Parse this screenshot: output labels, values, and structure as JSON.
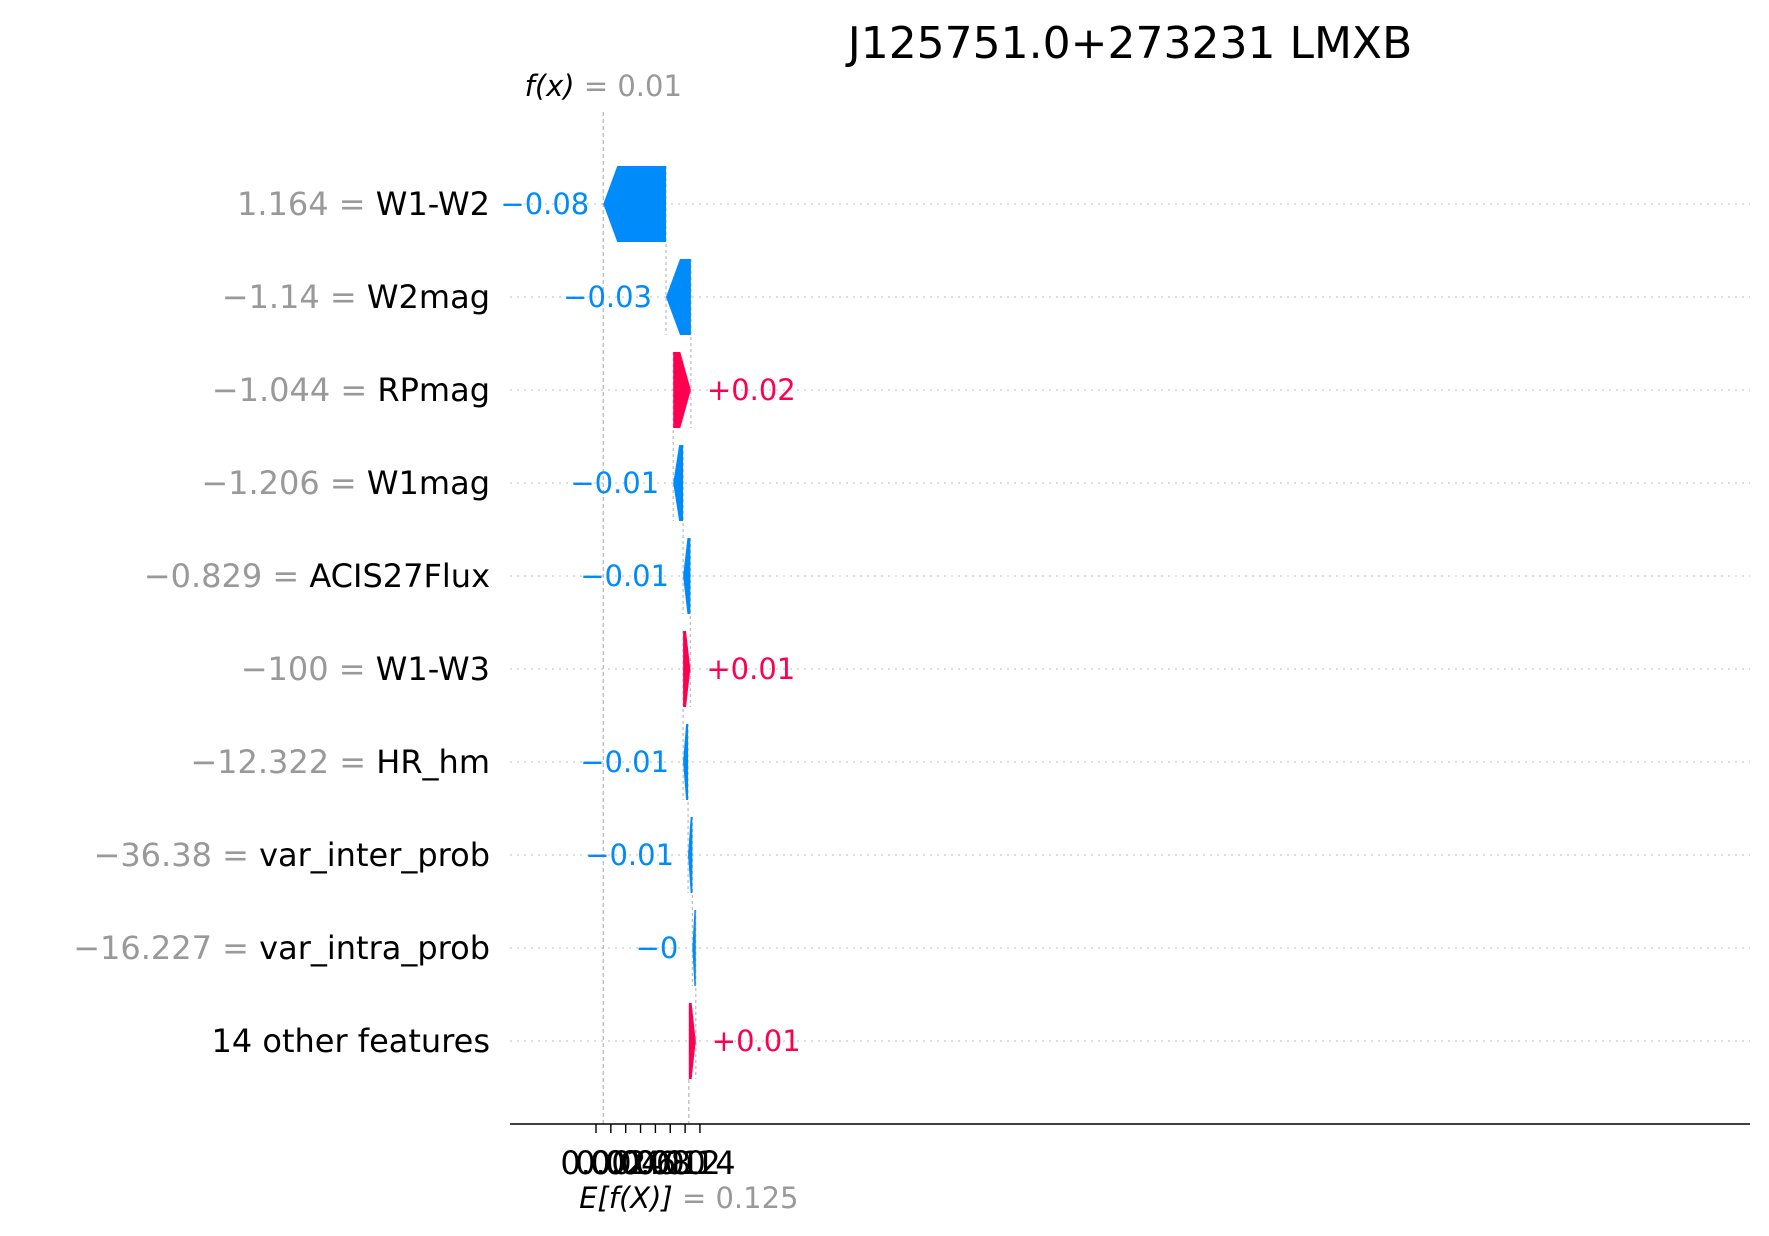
{
  "chart_data": {
    "type": "bar",
    "orientation": "horizontal",
    "subtype": "waterfall",
    "title": "J125751.0+273231 LMXB",
    "fx": {
      "label_prefix": "f(x)",
      "value": 0.0098,
      "value_text": " = 0.01"
    },
    "efx": {
      "label_prefix": "E[f(X)]",
      "value": 0.125,
      "value_text": " = 0.125"
    },
    "xlim": [
      -0.0115,
      0.1555
    ],
    "ticks": [
      0.0,
      0.02,
      0.04,
      0.06,
      0.08,
      0.1,
      0.12,
      0.14
    ],
    "tick_labels": [
      "0.00",
      "0.02",
      "0.04",
      "0.06",
      "0.08",
      "0.10",
      "0.12",
      "0.14"
    ],
    "grid": "dotted row guides",
    "colors": {
      "positive": "#ff0051",
      "negative": "#008bfb",
      "muted": "#999999"
    },
    "features": [
      {
        "value": "1.164",
        "name": "W1-W2",
        "start": 0.0943,
        "end": 0.0098,
        "label": "−0.08"
      },
      {
        "value": "−1.14",
        "name": "W2mag",
        "start": 0.1278,
        "end": 0.0943,
        "label": "−0.03"
      },
      {
        "value": "−1.044",
        "name": "RPmag",
        "start": 0.104,
        "end": 0.1278,
        "label": "+0.02"
      },
      {
        "value": "−1.206",
        "name": "W1mag",
        "start": 0.1173,
        "end": 0.104,
        "label": "−0.01"
      },
      {
        "value": "−0.829",
        "name": "ACIS27Flux",
        "start": 0.1271,
        "end": 0.1173,
        "label": "−0.01"
      },
      {
        "value": "−100",
        "name": "W1-W3",
        "start": 0.1173,
        "end": 0.1271,
        "label": "+0.01"
      },
      {
        "value": "−12.322",
        "name": "HR_hm",
        "start": 0.124,
        "end": 0.1173,
        "label": "−0.01"
      },
      {
        "value": "−36.38",
        "name": "var_inter_prob",
        "start": 0.1298,
        "end": 0.124,
        "label": "−0.01"
      },
      {
        "value": "−16.227",
        "name": "var_intra_prob",
        "start": 0.1344,
        "end": 0.1298,
        "label": "−0"
      },
      {
        "value": "",
        "name": "14 other features",
        "start": 0.125,
        "end": 0.1344,
        "label": "+0.01"
      }
    ]
  }
}
